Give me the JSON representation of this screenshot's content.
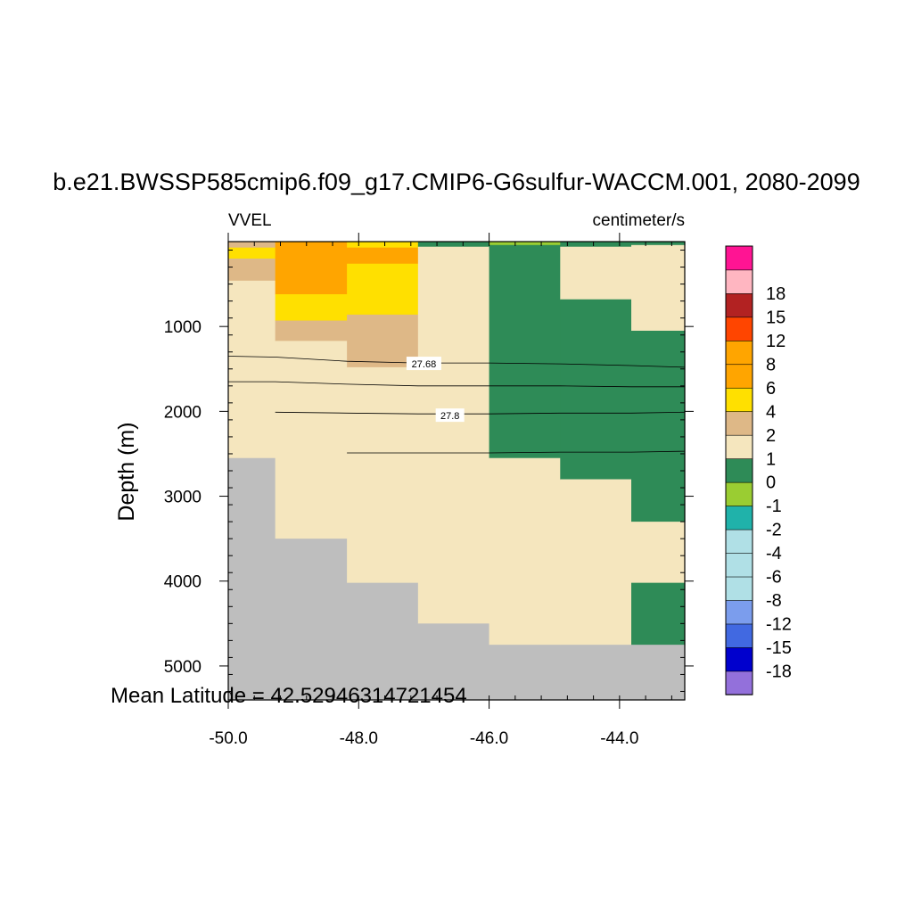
{
  "chart_data": {
    "type": "heatmap",
    "title": "b.e21.BWSSP585cmip6.f09_g17.CMIP6-G6sulfur-WACCM.001, 2080-2099",
    "left_label": "VVEL",
    "right_label": "centimeter/s",
    "ylabel": "Depth (m)",
    "xlabel": "",
    "xlim": [
      -50.0,
      -43.0
    ],
    "ylim": [
      5400,
      0
    ],
    "y_reversed": true,
    "x_ticks": [
      -50.0,
      -48.0,
      -46.0,
      -44.0
    ],
    "x_tick_labels": [
      "-50.0",
      "-48.0",
      "-46.0",
      "-44.0"
    ],
    "y_ticks": [
      1000,
      2000,
      3000,
      4000,
      5000
    ],
    "y_tick_labels": [
      "1000",
      "2000",
      "3000",
      "4000",
      "5000"
    ],
    "annotation": "Mean Latitude = 42.52946314721454",
    "columns": [
      {
        "x0": -50.0,
        "x1": -49.28
      },
      {
        "x0": -49.28,
        "x1": -48.18
      },
      {
        "x0": -48.18,
        "x1": -47.09
      },
      {
        "x0": -47.09,
        "x1": -46.0
      },
      {
        "x0": -46.0,
        "x1": -44.91
      },
      {
        "x0": -44.91,
        "x1": -43.82
      },
      {
        "x0": -43.82,
        "x1": -43.0
      }
    ],
    "cells": [
      {
        "col": 0,
        "top": 0,
        "bottom": 70,
        "level": "1 to 2"
      },
      {
        "col": 0,
        "top": 70,
        "bottom": 200,
        "level": "2 to 4"
      },
      {
        "col": 0,
        "top": 200,
        "bottom": 460,
        "level": "1 to 2"
      },
      {
        "col": 0,
        "top": 460,
        "bottom": 2550,
        "level": "0 to 1"
      },
      {
        "col": 0,
        "top": 2550,
        "bottom": 5400,
        "level": "land"
      },
      {
        "col": 1,
        "top": 0,
        "bottom": 620,
        "level": "6 to 8"
      },
      {
        "col": 1,
        "top": 620,
        "bottom": 930,
        "level": "2 to 4"
      },
      {
        "col": 1,
        "top": 930,
        "bottom": 1170,
        "level": "1 to 2"
      },
      {
        "col": 1,
        "top": 1170,
        "bottom": 3500,
        "level": "0 to 1"
      },
      {
        "col": 1,
        "top": 3500,
        "bottom": 5400,
        "level": "land"
      },
      {
        "col": 2,
        "top": 0,
        "bottom": 70,
        "level": "2 to 4"
      },
      {
        "col": 2,
        "top": 70,
        "bottom": 260,
        "level": "6 to 8"
      },
      {
        "col": 2,
        "top": 260,
        "bottom": 860,
        "level": "2 to 4"
      },
      {
        "col": 2,
        "top": 860,
        "bottom": 1480,
        "level": "1 to 2"
      },
      {
        "col": 2,
        "top": 1480,
        "bottom": 4020,
        "level": "0 to 1"
      },
      {
        "col": 2,
        "top": 4020,
        "bottom": 5400,
        "level": "land"
      },
      {
        "col": 3,
        "top": 0,
        "bottom": 60,
        "level": "-1 to 0"
      },
      {
        "col": 3,
        "top": 60,
        "bottom": 4500,
        "level": "0 to 1"
      },
      {
        "col": 3,
        "top": 4500,
        "bottom": 5400,
        "level": "land"
      },
      {
        "col": 4,
        "top": 0,
        "bottom": 40,
        "level": "-2 to -1"
      },
      {
        "col": 4,
        "top": 40,
        "bottom": 2550,
        "level": "-1 to 0"
      },
      {
        "col": 4,
        "top": 2550,
        "bottom": 4750,
        "level": "0 to 1"
      },
      {
        "col": 4,
        "top": 4750,
        "bottom": 5400,
        "level": "land"
      },
      {
        "col": 5,
        "top": 0,
        "bottom": 60,
        "level": "-1 to 0"
      },
      {
        "col": 5,
        "top": 60,
        "bottom": 680,
        "level": "0 to 1"
      },
      {
        "col": 5,
        "top": 680,
        "bottom": 2800,
        "level": "-1 to 0"
      },
      {
        "col": 5,
        "top": 2800,
        "bottom": 4750,
        "level": "0 to 1"
      },
      {
        "col": 5,
        "top": 4750,
        "bottom": 5400,
        "level": "land"
      },
      {
        "col": 6,
        "top": 0,
        "bottom": 40,
        "level": "-1 to 0"
      },
      {
        "col": 6,
        "top": 40,
        "bottom": 1050,
        "level": "0 to 1"
      },
      {
        "col": 6,
        "top": 1050,
        "bottom": 3300,
        "level": "-1 to 0"
      },
      {
        "col": 6,
        "top": 3300,
        "bottom": 4020,
        "level": "0 to 1"
      },
      {
        "col": 6,
        "top": 4020,
        "bottom": 4750,
        "level": "-1 to 0"
      },
      {
        "col": 6,
        "top": 4750,
        "bottom": 5400,
        "level": "land"
      }
    ],
    "level_colors": {
      "land": "#bebebe",
      "-2 to -1": "#9acd32",
      "-1 to 0": "#2e8b57",
      "0 to 1": "#f5e6be",
      "1 to 2": "#deb887",
      "2 to 4": "#ffe000",
      "6 to 8": "#ffa500"
    },
    "contours": [
      {
        "label": "27.68",
        "label_x": -47.0,
        "label_y": 1440,
        "points": [
          [
            -50.0,
            1350
          ],
          [
            -49.28,
            1360
          ],
          [
            -48.18,
            1410
          ],
          [
            -47.09,
            1430
          ],
          [
            -46.0,
            1430
          ],
          [
            -44.91,
            1440
          ],
          [
            -43.82,
            1460
          ],
          [
            -43.0,
            1480
          ]
        ]
      },
      {
        "label": "",
        "points": [
          [
            -50.0,
            1650
          ],
          [
            -49.28,
            1650
          ],
          [
            -48.18,
            1680
          ],
          [
            -47.09,
            1700
          ],
          [
            -46.0,
            1700
          ],
          [
            -44.91,
            1700
          ],
          [
            -43.82,
            1710
          ],
          [
            -43.0,
            1710
          ]
        ]
      },
      {
        "label": "27.8",
        "label_x": -46.6,
        "label_y": 2050,
        "points": [
          [
            -49.28,
            2010
          ],
          [
            -48.18,
            2020
          ],
          [
            -47.09,
            2030
          ],
          [
            -46.0,
            2030
          ],
          [
            -44.91,
            2020
          ],
          [
            -43.82,
            2020
          ],
          [
            -43.0,
            2010
          ]
        ]
      },
      {
        "label": "",
        "points": [
          [
            -48.18,
            2490
          ],
          [
            -47.09,
            2490
          ],
          [
            -46.0,
            2490
          ],
          [
            -44.91,
            2480
          ],
          [
            -43.82,
            2480
          ],
          [
            -43.0,
            2470
          ]
        ]
      }
    ],
    "colorbar": {
      "colors": [
        "#9370db",
        "#0000cd",
        "#4169e1",
        "#7b9ded",
        "#b0e0e6",
        "#b0e0e6",
        "#b0e0e6",
        "#20b2aa",
        "#9acd32",
        "#2e8b57",
        "#f5e6be",
        "#deb887",
        "#ffe000",
        "#ffa500",
        "#ffa500",
        "#ff4500",
        "#b22222",
        "#ffb6c1",
        "#ff1493"
      ],
      "labels": [
        "-18",
        "-15",
        "-12",
        "-8",
        "-6",
        "-4",
        "-2",
        "-1",
        "0",
        "1",
        "2",
        "4",
        "6",
        "8",
        "12",
        "15",
        "18"
      ]
    }
  }
}
